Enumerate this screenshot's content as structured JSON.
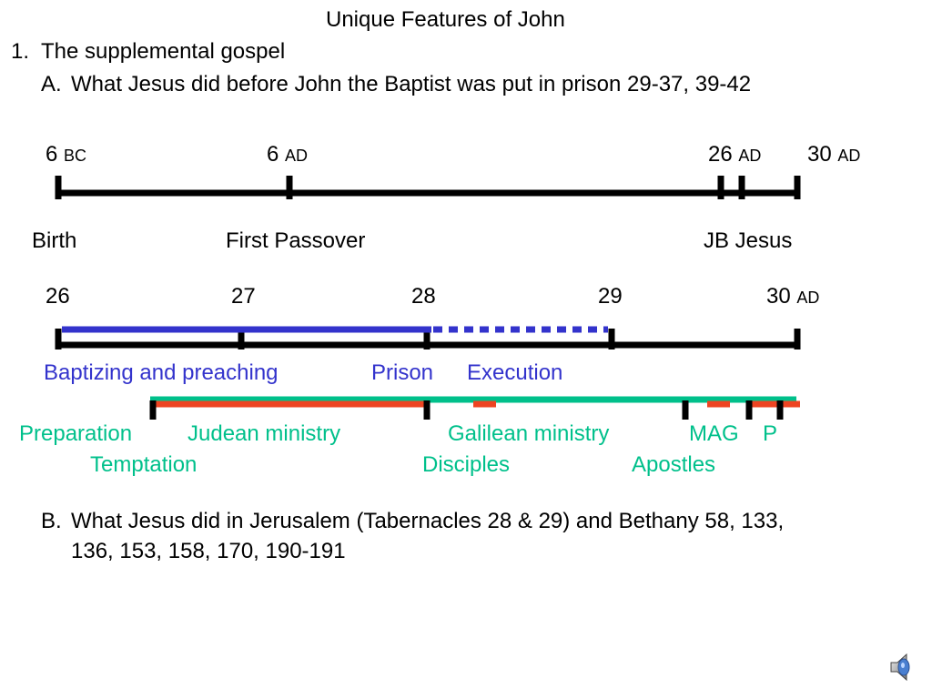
{
  "title": "Unique Features of John",
  "point1": {
    "num": "1.",
    "text": "The supplemental gospel"
  },
  "pointA": {
    "num": "A.",
    "text": "What Jesus did before John the Baptist was put in prison  29-37, 39-42"
  },
  "timeline1": {
    "labels": [
      {
        "num": "6",
        "era": "BC"
      },
      {
        "num": "6",
        "era": "AD"
      },
      {
        "num": "26",
        "era": "AD"
      },
      {
        "num": "30",
        "era": "AD"
      }
    ],
    "events": [
      "Birth",
      "First Passover",
      "JB Jesus"
    ]
  },
  "timeline2": {
    "labels": [
      {
        "num": "26",
        "era": ""
      },
      {
        "num": "27",
        "era": ""
      },
      {
        "num": "28",
        "era": ""
      },
      {
        "num": "29",
        "era": ""
      },
      {
        "num": "30",
        "era": "AD"
      }
    ],
    "baptist": [
      "Baptizing and preaching",
      "Prison",
      "Execution"
    ],
    "jesus_row1": [
      "Preparation",
      "Judean ministry",
      "Galilean ministry",
      "MAG",
      "P"
    ],
    "jesus_row2": [
      "Temptation",
      "Disciples",
      "Apostles"
    ]
  },
  "pointB": {
    "num": "B.",
    "line1": "What Jesus did in Jerusalem (Tabernacles 28 & 29) and Bethany 58, 133,",
    "line2": "136, 153, 158, 170, 190-191"
  },
  "colors": {
    "baptist": "#3333cc",
    "jesus": "#00c08b",
    "ministry_bar": "#ee4422",
    "timeline": "#000000"
  },
  "icons": {
    "audio": "speaker-icon"
  }
}
